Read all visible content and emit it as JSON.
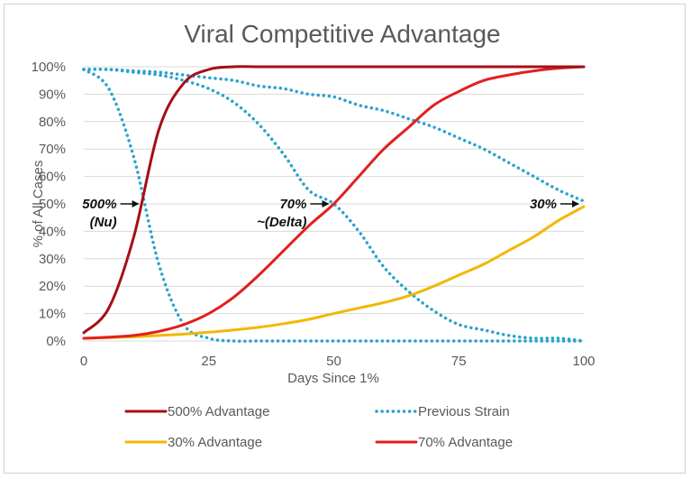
{
  "chart_data": {
    "type": "line",
    "title": "Viral Competitive Advantage",
    "xlabel": "Days Since 1%",
    "ylabel": "% of All Cases",
    "xlim": [
      0,
      100
    ],
    "ylim": [
      0,
      1
    ],
    "x_ticks": [
      "0",
      "25",
      "50",
      "75",
      "100"
    ],
    "y_ticks": [
      "0%",
      "10%",
      "20%",
      "30%",
      "40%",
      "50%",
      "60%",
      "70%",
      "80%",
      "90%",
      "100%"
    ],
    "grid": "horizontal",
    "legend_position": "bottom",
    "x": [
      0,
      5,
      10,
      15,
      20,
      25,
      30,
      35,
      40,
      45,
      50,
      55,
      60,
      65,
      70,
      75,
      80,
      85,
      90,
      95,
      100
    ],
    "series": [
      {
        "name": "500% Advantage",
        "color": "#a50f15",
        "style": "solid",
        "values": [
          0.03,
          0.12,
          0.38,
          0.77,
          0.94,
          0.99,
          1.0,
          1.0,
          1.0,
          1.0,
          1.0,
          1.0,
          1.0,
          1.0,
          1.0,
          1.0,
          1.0,
          1.0,
          1.0,
          1.0,
          1.0
        ]
      },
      {
        "name": "Previous Strain",
        "color": "#2aa3cc",
        "style": "dotted",
        "values": [
          0.99,
          0.92,
          0.67,
          0.28,
          0.06,
          0.01,
          0.0,
          0.0,
          0.0,
          0.0,
          0.0,
          0.0,
          0.0,
          0.0,
          0.0,
          0.0,
          0.0,
          0.0,
          0.0,
          0.0,
          0.0
        ]
      },
      {
        "name": "Previous Strain",
        "color": "#2aa3cc",
        "style": "dotted",
        "values": [
          0.99,
          0.99,
          0.98,
          0.97,
          0.95,
          0.92,
          0.87,
          0.79,
          0.68,
          0.55,
          0.5,
          0.4,
          0.27,
          0.18,
          0.11,
          0.06,
          0.04,
          0.02,
          0.01,
          0.01,
          0.0
        ]
      },
      {
        "name": "Previous Strain",
        "color": "#2aa3cc",
        "style": "dotted",
        "values": [
          0.99,
          0.99,
          0.985,
          0.98,
          0.97,
          0.96,
          0.95,
          0.93,
          0.92,
          0.9,
          0.89,
          0.86,
          0.84,
          0.81,
          0.78,
          0.74,
          0.7,
          0.65,
          0.6,
          0.55,
          0.51
        ]
      },
      {
        "name": "30% Advantage",
        "color": "#f2b705",
        "style": "solid",
        "values": [
          0.01,
          0.012,
          0.015,
          0.02,
          0.025,
          0.032,
          0.04,
          0.05,
          0.063,
          0.079,
          0.1,
          0.12,
          0.14,
          0.165,
          0.2,
          0.24,
          0.28,
          0.33,
          0.38,
          0.44,
          0.49
        ]
      },
      {
        "name": "70% Advantage",
        "color": "#e02020",
        "style": "solid",
        "values": [
          0.01,
          0.014,
          0.02,
          0.035,
          0.06,
          0.1,
          0.16,
          0.24,
          0.33,
          0.42,
          0.5,
          0.6,
          0.7,
          0.78,
          0.86,
          0.91,
          0.95,
          0.97,
          0.985,
          0.995,
          1.0
        ]
      }
    ],
    "annotations": [
      {
        "lines": [
          "500%",
          "(Nu)"
        ],
        "x": 12,
        "y": 0.5
      },
      {
        "lines": [
          "70%",
          "~(Delta)"
        ],
        "x": 50,
        "y": 0.5
      },
      {
        "lines": [
          "30%"
        ],
        "x": 100,
        "y": 0.5
      }
    ],
    "legend": [
      {
        "label": "500% Advantage",
        "color": "#a50f15",
        "style": "solid"
      },
      {
        "label": "Previous Strain",
        "color": "#2aa3cc",
        "style": "dotted"
      },
      {
        "label": "30% Advantage",
        "color": "#f2b705",
        "style": "solid"
      },
      {
        "label": "70% Advantage",
        "color": "#e02020",
        "style": "solid"
      }
    ]
  }
}
